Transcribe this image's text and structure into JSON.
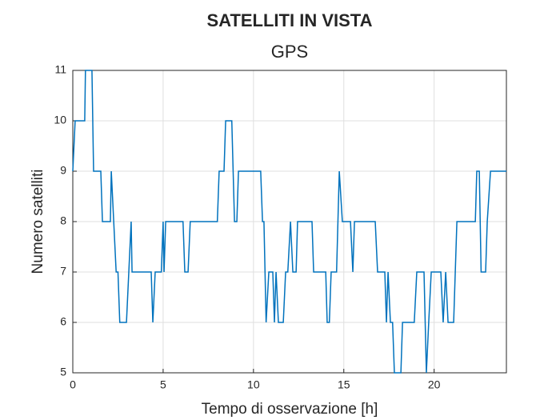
{
  "chart_data": {
    "type": "line",
    "title": "SATELLITI IN VISTA",
    "subtitle": "GPS",
    "x_label": "Tempo di osservazione [h]",
    "y_label": "Numero satelliti",
    "x": [
      0,
      0.13,
      0.66,
      0.7,
      1.06,
      1.15,
      1.55,
      1.64,
      2.08,
      2.13,
      2.4,
      2.5,
      2.6,
      2.97,
      3.1,
      3.23,
      3.28,
      4.34,
      4.43,
      4.56,
      4.9,
      5.0,
      5.05,
      5.14,
      6.1,
      6.2,
      6.38,
      6.5,
      8.0,
      8.1,
      8.37,
      8.46,
      8.8,
      8.95,
      9.08,
      9.17,
      10.4,
      10.5,
      10.58,
      10.7,
      10.85,
      11.07,
      11.16,
      11.25,
      11.38,
      11.65,
      11.78,
      11.9,
      12.05,
      12.18,
      12.36,
      12.44,
      13.24,
      13.33,
      14.0,
      14.08,
      14.2,
      14.3,
      14.6,
      14.75,
      14.92,
      15.37,
      15.5,
      15.59,
      16.74,
      16.87,
      17.27,
      17.36,
      17.45,
      17.58,
      17.7,
      17.8,
      18.16,
      18.25,
      18.9,
      19.04,
      19.44,
      19.57,
      19.7,
      19.84,
      20.37,
      20.5,
      20.64,
      20.77,
      21.08,
      21.26,
      22.28,
      22.36,
      22.5,
      22.6,
      22.85,
      22.94,
      23.12,
      24
    ],
    "series": [
      {
        "color": "#0072bd",
        "values": [
          9,
          10,
          10,
          11,
          11,
          9,
          9,
          8,
          8,
          9,
          7,
          7,
          6,
          6,
          7,
          8,
          7,
          7,
          6,
          7,
          7,
          8,
          7,
          8,
          8,
          7,
          7,
          8,
          8,
          9,
          9,
          10,
          10,
          8,
          8,
          9,
          9,
          8,
          8,
          6,
          7,
          7,
          6,
          7,
          6,
          6,
          7,
          7,
          8,
          7,
          7,
          8,
          8,
          7,
          7,
          6,
          6,
          7,
          7,
          9,
          8,
          8,
          7,
          8,
          8,
          7,
          7,
          6,
          7,
          6,
          6,
          5,
          5,
          6,
          6,
          7,
          7,
          5,
          6,
          7,
          7,
          6,
          7,
          6,
          6,
          8,
          8,
          9,
          9,
          7,
          7,
          8,
          9,
          9
        ]
      }
    ],
    "xlim": [
      0,
      24
    ],
    "xticks": [
      0,
      5,
      10,
      15,
      20
    ],
    "ylim": [
      5,
      11
    ],
    "yticks": [
      5,
      6,
      7,
      8,
      9,
      10,
      11
    ],
    "grid": true
  }
}
